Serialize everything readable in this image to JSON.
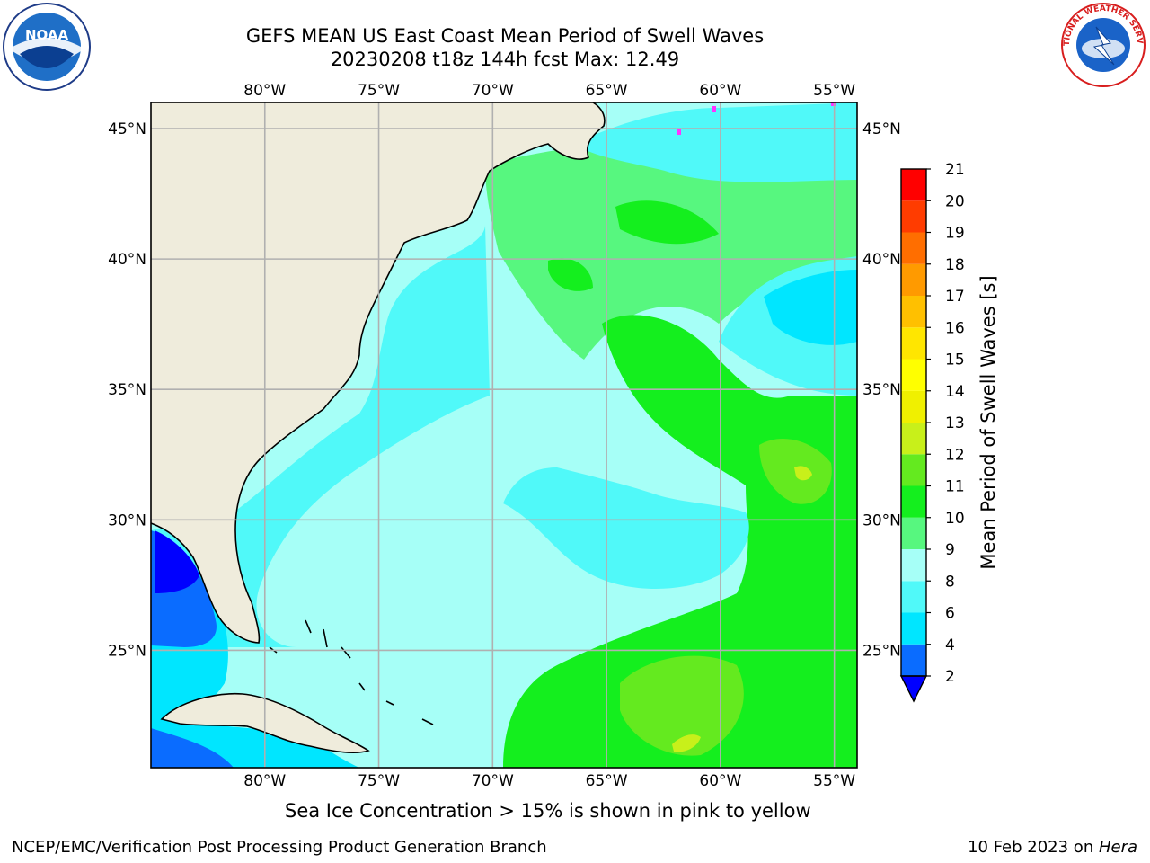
{
  "header": {
    "title_line1": "GEFS MEAN US East Coast Mean Period of Swell Waves",
    "title_line2": "20230208 t18z 144h fcst   Max: 12.49"
  },
  "logos": {
    "left": {
      "icon": "noaa-logo",
      "text": "NOAA"
    },
    "right": {
      "icon": "nws-logo",
      "text": "NATIONAL WEATHER SERVICE"
    }
  },
  "map": {
    "projection": "cylindrical",
    "lon_range": [
      -85,
      -54
    ],
    "lat_range": [
      20.5,
      46
    ],
    "lon_ticks": [
      {
        "value": -80,
        "label": "80°W"
      },
      {
        "value": -75,
        "label": "75°W"
      },
      {
        "value": -70,
        "label": "70°W"
      },
      {
        "value": -65,
        "label": "65°W"
      },
      {
        "value": -60,
        "label": "60°W"
      },
      {
        "value": -55,
        "label": "55°W"
      }
    ],
    "lat_ticks": [
      {
        "value": 45,
        "label": "45°N"
      },
      {
        "value": 40,
        "label": "40°N"
      },
      {
        "value": 35,
        "label": "35°N"
      },
      {
        "value": 30,
        "label": "30°N"
      },
      {
        "value": 25,
        "label": "25°N"
      }
    ],
    "gridlines": true,
    "land_color": "#efecdc",
    "field": "Mean Period of Swell Waves",
    "field_max": 12.49,
    "field_regions": [
      {
        "name": "ocean-base",
        "level": "8-9",
        "color": "#a6fff7"
      },
      {
        "name": "shelf-north",
        "level": "9-10",
        "color": "#57f77f"
      },
      {
        "name": "gulf-stream-band",
        "level": "10-11",
        "color": "#14ef1e"
      },
      {
        "name": "sargasso-southeast",
        "level": "10-11",
        "color": "#14ef1e"
      },
      {
        "name": "caribbean-northeast",
        "level": "11-12",
        "color": "#64ea1f"
      },
      {
        "name": "mid-east-patch",
        "level": "11-12",
        "color": "#64ea1f"
      },
      {
        "name": "coastal-band",
        "level": "6-8",
        "color": "#50f9f9"
      },
      {
        "name": "nova-scotia-band",
        "level": "6-8",
        "color": "#50f9f9"
      },
      {
        "name": "northeast-pocket",
        "level": "4-6",
        "color": "#00e6ff"
      },
      {
        "name": "gulf-of-mexico",
        "level": "4-6",
        "color": "#00e6ff"
      },
      {
        "name": "gulf-inner",
        "level": "2-4",
        "color": "#0a6cff"
      },
      {
        "name": "gulf-deep",
        "level": "<2",
        "color": "#0000ff"
      },
      {
        "name": "max-spot",
        "level": "12-13",
        "color": "#c8f01a"
      }
    ]
  },
  "colorbar": {
    "label": "Mean Period of Swell Waves [s]",
    "ticks": [
      "2",
      "4",
      "6",
      "8",
      "9",
      "10",
      "11",
      "12",
      "13",
      "14",
      "15",
      "16",
      "17",
      "18",
      "19",
      "20",
      "21"
    ],
    "colors": [
      "#0a6cff",
      "#00e6ff",
      "#50f9f9",
      "#a6fff7",
      "#57f77f",
      "#14ef1e",
      "#64ea1f",
      "#c8f01a",
      "#f0f000",
      "#ffff00",
      "#ffe600",
      "#ffc000",
      "#ff9a00",
      "#ff6e00",
      "#ff3c00",
      "#ff0000"
    ],
    "under_color": "#0000ff"
  },
  "ice_note": "Sea Ice Concentration > 15% is shown in pink to yellow",
  "footer": {
    "left": "NCEP/EMC/Verification Post Processing Product Generation Branch",
    "right_prefix": "10 Feb 2023 on ",
    "right_host": "Hera"
  }
}
